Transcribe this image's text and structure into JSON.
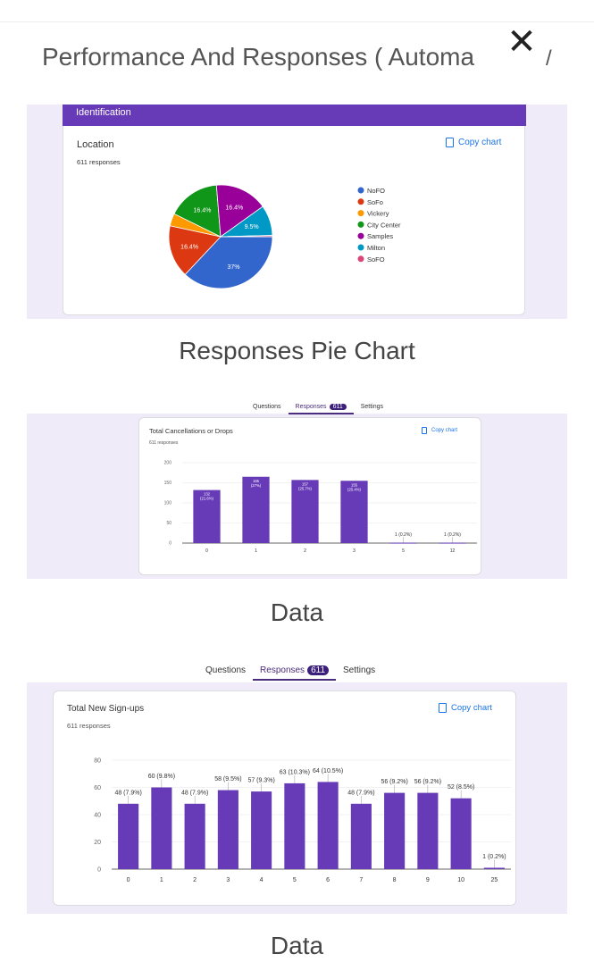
{
  "header": {
    "title": "Performance And Responses ( Automa",
    "close_icon": "close-icon",
    "trailing": "/"
  },
  "section1": {
    "banner": "Identification",
    "question": "Location",
    "responses": "611 responses",
    "copy_label": "Copy chart",
    "caption": "Responses Pie Chart"
  },
  "section2": {
    "tabs": [
      "Questions",
      "Responses",
      "Settings"
    ],
    "badge": "611",
    "question": "Total Cancellations or Drops",
    "responses": "611 responses",
    "copy_label": "Copy chart",
    "caption": "Data"
  },
  "section3": {
    "tabs": [
      "Questions",
      "Responses",
      "Settings"
    ],
    "badge": "611",
    "question": "Total New Sign-ups",
    "responses": "611 responses",
    "copy_label": "Copy chart",
    "caption": "Data"
  },
  "chart_data": [
    {
      "type": "pie",
      "title": "Location",
      "labels": [
        "NoFO",
        "SoFo",
        "Vickery",
        "City Center",
        "Samples",
        "Milton",
        "SoFO"
      ],
      "values": [
        37,
        16.4,
        3.9,
        16.4,
        16.4,
        9.5,
        0.4
      ],
      "slice_labels": [
        "37%",
        "16.4%",
        "",
        "16.4%",
        "16.4%",
        "9.5%",
        ""
      ],
      "colors": [
        "#3366cc",
        "#dc3912",
        "#ff9900",
        "#109618",
        "#990099",
        "#0099c6",
        "#dd4477"
      ],
      "legend": "right"
    },
    {
      "type": "bar",
      "title": "Total Cancellations or Drops",
      "categories": [
        "0",
        "1",
        "2",
        "3",
        "5",
        "12"
      ],
      "values": [
        132,
        165,
        157,
        155,
        1,
        1
      ],
      "labels": [
        "132 (21.6%)",
        "165 (27%)",
        "157 (25.7%)",
        "155 (25.4%)",
        "1 (0.2%)",
        "1 (0.2%)"
      ],
      "yticks": [
        0,
        50,
        100,
        150,
        200
      ],
      "ylim": [
        0,
        200
      ],
      "color": "#673ab7"
    },
    {
      "type": "bar",
      "title": "Total New Sign-ups",
      "categories": [
        "0",
        "1",
        "2",
        "3",
        "4",
        "5",
        "6",
        "7",
        "8",
        "9",
        "10",
        "25"
      ],
      "values": [
        48,
        60,
        48,
        58,
        57,
        63,
        64,
        48,
        56,
        56,
        52,
        1
      ],
      "labels": [
        "48 (7.9%)",
        "60 (9.8%)",
        "48 (7.9%)",
        "58 (9.5%)",
        "57 (9.3%)",
        "63 (10.3%)",
        "64 (10.5%)",
        "48 (7.9%)",
        "56 (9.2%)",
        "56 (9.2%)",
        "52 (8.5%)",
        "1 (0.2%)"
      ],
      "yticks": [
        0,
        20,
        40,
        60,
        80
      ],
      "ylim": [
        0,
        80
      ],
      "color": "#673ab7"
    }
  ]
}
